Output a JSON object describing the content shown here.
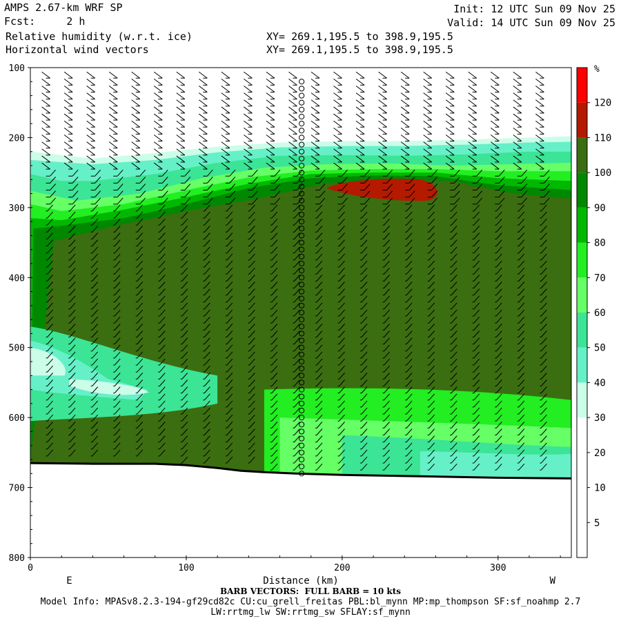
{
  "header": {
    "model": "AMPS 2.67-km WRF SP",
    "fcst": "Fcst:     2 h",
    "field1": "Relative humidity (w.r.t. ice)",
    "field2": "Horizontal wind vectors",
    "xy1": "XY= 269.1,195.5 to 398.9,195.5",
    "xy2": "XY= 269.1,195.5 to 398.9,195.5",
    "init": "Init: 12 UTC Sun 09 Nov 25",
    "valid": "Valid: 14 UTC Sun 09 Nov 25"
  },
  "footer": {
    "barb": "BARB VECTORS:  FULL BARB = 10 kts",
    "model_info": "Model Info: MPASv8.2.3-194-gf29cd82c CU:cu_grell_freitas PBL:bl_mynn MP:mp_thompson SF:sf_noahmp 2.7",
    "model_info2": "LW:rrtmg_lw SW:rrtmg_sw SFLAY:sf_mynn"
  },
  "chart_data": {
    "type": "heatmap",
    "xlabel": "Distance (km)",
    "ylabel": "",
    "x_ticks": [
      0,
      100,
      200,
      300
    ],
    "y_ticks": [
      100,
      200,
      300,
      400,
      500,
      600,
      700,
      800
    ],
    "xlim": [
      0,
      347
    ],
    "ylim": [
      100,
      800
    ],
    "left_end_label": "E",
    "right_end_label": "W",
    "colorbar": {
      "unit": "%",
      "levels": [
        0,
        5,
        10,
        20,
        30,
        40,
        50,
        60,
        70,
        80,
        90,
        100,
        110,
        120
      ],
      "colors": [
        "#ffffff",
        "#ffffff",
        "#ffffff",
        "#ffffff",
        "#ccfde8",
        "#66f0c8",
        "#3ce496",
        "#66ff66",
        "#22ee22",
        "#00b800",
        "#008800",
        "#3b6e10",
        "#b41a00",
        "#ff0000"
      ]
    },
    "rh_regions": [
      {
        "level": 30,
        "top": [
          [
            0,
            220
          ],
          [
            40,
            230
          ],
          [
            80,
            222
          ],
          [
            120,
            213
          ],
          [
            160,
            207
          ],
          [
            200,
            205
          ],
          [
            240,
            205
          ],
          [
            280,
            203
          ],
          [
            320,
            200
          ],
          [
            347,
            198
          ]
        ]
      },
      {
        "level": 40,
        "top": [
          [
            0,
            232
          ],
          [
            40,
            238
          ],
          [
            80,
            232
          ],
          [
            120,
            221
          ],
          [
            160,
            214
          ],
          [
            200,
            212
          ],
          [
            240,
            212
          ],
          [
            280,
            210
          ],
          [
            320,
            207
          ],
          [
            347,
            206
          ]
        ]
      },
      {
        "level": 50,
        "top": [
          [
            0,
            252
          ],
          [
            20,
            262
          ],
          [
            40,
            262
          ],
          [
            80,
            252
          ],
          [
            120,
            236
          ],
          [
            160,
            226
          ],
          [
            200,
            225
          ],
          [
            240,
            226
          ],
          [
            280,
            224
          ],
          [
            320,
            220
          ],
          [
            347,
            220
          ]
        ]
      },
      {
        "level": 60,
        "top": [
          [
            0,
            276
          ],
          [
            30,
            290
          ],
          [
            70,
            280
          ],
          [
            110,
            258
          ],
          [
            150,
            243
          ],
          [
            190,
            238
          ],
          [
            230,
            237
          ],
          [
            270,
            240
          ],
          [
            310,
            238
          ],
          [
            347,
            236
          ]
        ]
      },
      {
        "level": 70,
        "top": [
          [
            0,
            295
          ],
          [
            20,
            305
          ],
          [
            60,
            295
          ],
          [
            100,
            275
          ],
          [
            140,
            257
          ],
          [
            180,
            247
          ],
          [
            220,
            245
          ],
          [
            260,
            245
          ],
          [
            300,
            248
          ],
          [
            347,
            248
          ]
        ]
      },
      {
        "level": 80,
        "top": [
          [
            0,
            315
          ],
          [
            20,
            318
          ],
          [
            60,
            303
          ],
          [
            100,
            285
          ],
          [
            140,
            266
          ],
          [
            180,
            252
          ],
          [
            220,
            250
          ],
          [
            260,
            250
          ],
          [
            300,
            258
          ],
          [
            347,
            262
          ]
        ]
      },
      {
        "level": 90,
        "top": [
          [
            2,
            330
          ],
          [
            20,
            326
          ],
          [
            60,
            315
          ],
          [
            100,
            295
          ],
          [
            140,
            272
          ],
          [
            180,
            258
          ],
          [
            220,
            254
          ],
          [
            260,
            255
          ],
          [
            300,
            268
          ],
          [
            347,
            275
          ]
        ]
      },
      {
        "level": 100,
        "top": [
          [
            15,
            348
          ],
          [
            50,
            328
          ],
          [
            100,
            305
          ],
          [
            150,
            285
          ],
          [
            190,
            265
          ],
          [
            230,
            260
          ],
          [
            270,
            262
          ],
          [
            310,
            280
          ],
          [
            347,
            287
          ]
        ]
      }
    ],
    "surface_pressure": [
      [
        0,
        665
      ],
      [
        40,
        666
      ],
      [
        80,
        666
      ],
      [
        100,
        668
      ],
      [
        120,
        672
      ],
      [
        135,
        676
      ],
      [
        150,
        678
      ],
      [
        170,
        680
      ],
      [
        200,
        682
      ],
      [
        250,
        684
      ],
      [
        300,
        686
      ],
      [
        347,
        687
      ]
    ],
    "wind_profile_x": 174
  }
}
